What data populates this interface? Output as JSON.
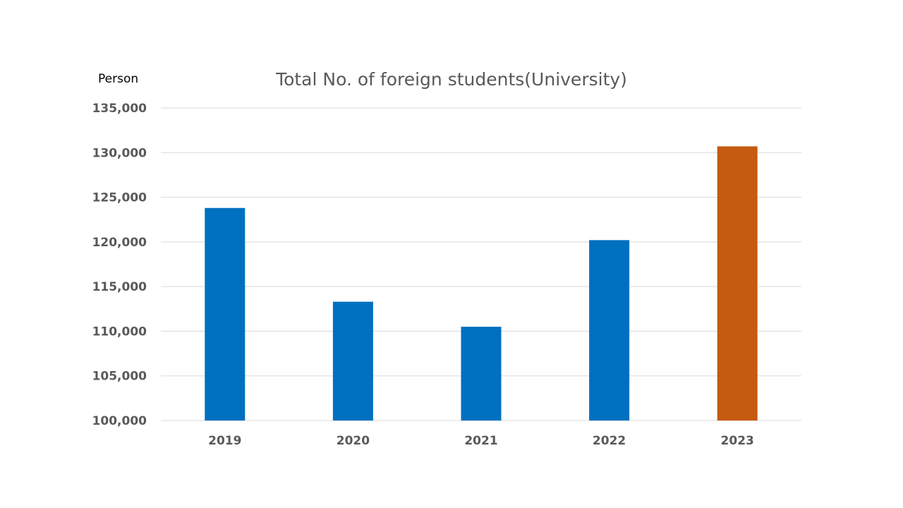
{
  "chart_data": {
    "type": "bar",
    "title": "Total No. of foreign students(University)",
    "ylabel": "Person",
    "xlabel": "",
    "categories": [
      "2019",
      "2020",
      "2021",
      "2022",
      "2023"
    ],
    "values": [
      123800,
      113300,
      110500,
      120200,
      130700
    ],
    "bar_colors": [
      "#0070C0",
      "#0070C0",
      "#0070C0",
      "#0070C0",
      "#C55A11"
    ],
    "ylim": [
      100000,
      135000
    ],
    "yticks": [
      100000,
      105000,
      110000,
      115000,
      120000,
      125000,
      130000,
      135000
    ],
    "ytick_labels": [
      "100,000",
      "105,000",
      "110,000",
      "115,000",
      "120,000",
      "125,000",
      "130,000",
      "135,000"
    ],
    "grid": true,
    "legend": "none"
  }
}
